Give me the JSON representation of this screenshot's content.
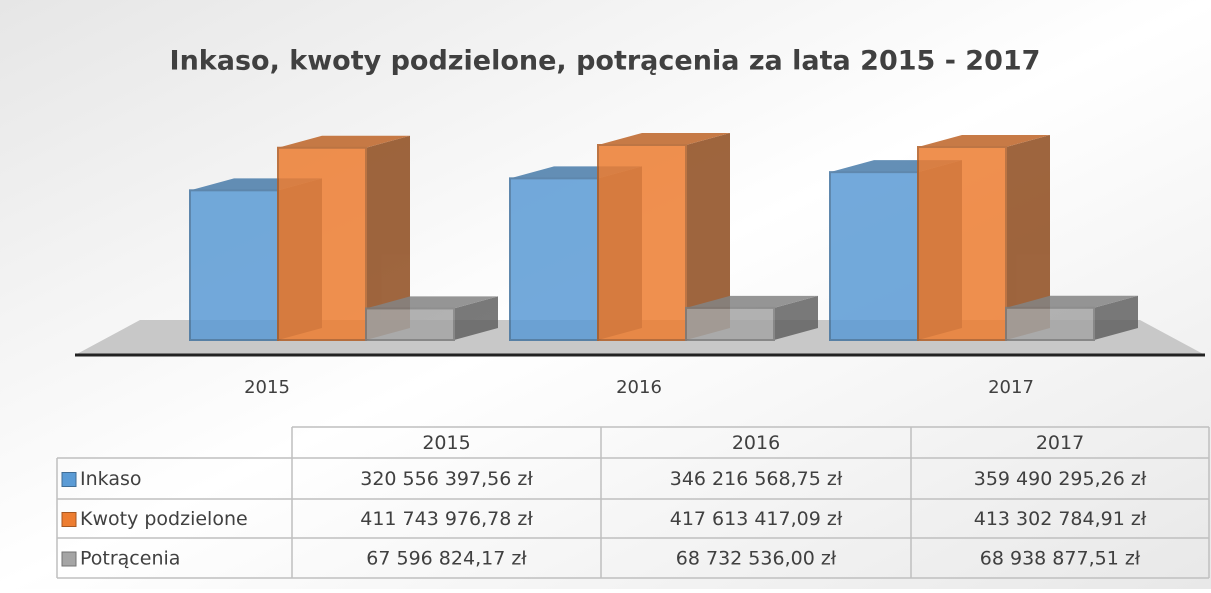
{
  "chart_data": {
    "type": "bar3d",
    "title": "Inkaso, kwoty podzielone, potrącenia za lata 2015 - 2017",
    "categories": [
      "2015",
      "2016",
      "2017"
    ],
    "series": [
      {
        "name": "Inkaso",
        "color": "#5b9bd5",
        "values": [
          320556397.56,
          346216568.75,
          359490295.26
        ],
        "value_labels": [
          "320 556 397,56 zł",
          "346 216 568,75 zł",
          "359 490 295,26 zł"
        ]
      },
      {
        "name": "Kwoty podzielone",
        "color": "#ed7d31",
        "values": [
          411743976.78,
          417613417.09,
          413302784.91
        ],
        "value_labels": [
          "411 743 976,78 zł",
          "417 613 417,09 zł",
          "413 302 784,91 zł"
        ]
      },
      {
        "name": "Potrącenia",
        "color": "#a5a5a5",
        "values": [
          67596824.17,
          68732536.0,
          68938877.51
        ],
        "value_labels": [
          "67 596 824,17 zł",
          "68 732 536,00 zł",
          "68 938 877,51 zł"
        ]
      }
    ]
  }
}
